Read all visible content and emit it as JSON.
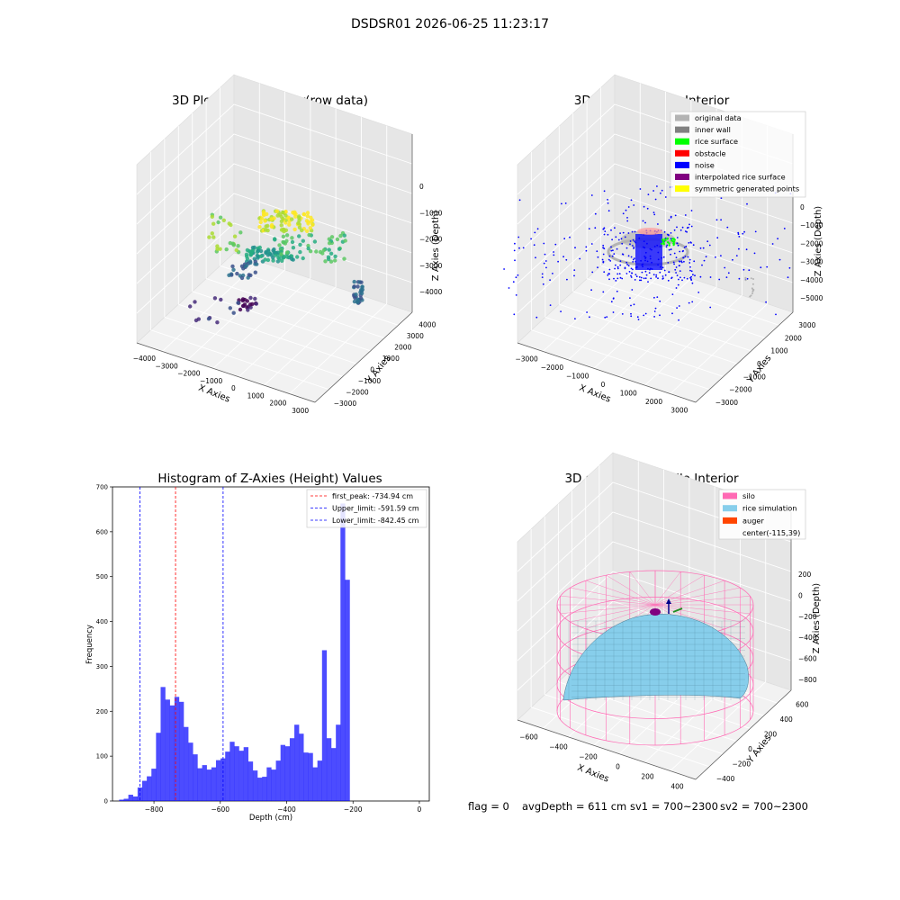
{
  "suptitle": "DSDSR01 2026-06-25 11:23:17",
  "status_line": {
    "flag": "flag = 0",
    "avg_depth": "avgDepth = 611 cm",
    "sv1": "sv1 = 700~2300",
    "sv2": "sv2 = 700~2300"
  },
  "chart_data": [
    {
      "type": "scatter",
      "projection": "3d",
      "title": "3D Plot of Silo Interior(row data)",
      "xlabel": "X Axies",
      "ylabel": "Y Axies",
      "zlabel": "Z Axies (Depth)",
      "x_ticks": [
        "−4000",
        "−3000",
        "−2000",
        "−1000",
        "0",
        "1000",
        "2000",
        "3000"
      ],
      "y_ticks": [
        "−3000",
        "−2000",
        "−1000",
        "0",
        "1000",
        "2000",
        "3000",
        "4000"
      ],
      "z_ticks": [
        "0",
        "−1000",
        "−2000",
        "−3000",
        "−4000"
      ],
      "xlim": [
        -4200,
        3300
      ],
      "ylim": [
        -3300,
        4200
      ],
      "zlim": [
        -4600,
        0
      ],
      "colormap": "viridis"
    },
    {
      "type": "scatter",
      "projection": "3d",
      "title": "3D classify of Silo Interior",
      "xlabel": "X Axies",
      "ylabel": "Y Axies",
      "zlabel": "Z Axies (Depth)",
      "x_ticks": [
        "−3000",
        "−2000",
        "−1000",
        "0",
        "1000",
        "2000",
        "3000"
      ],
      "y_ticks": [
        "−3000",
        "−2000",
        "−1000",
        "0",
        "1000",
        "2000",
        "3000"
      ],
      "z_ticks": [
        "0",
        "−1000",
        "−2000",
        "−3000",
        "−4000",
        "−5000"
      ],
      "xlim": [
        -3500,
        3200
      ],
      "ylim": [
        -3200,
        3300
      ],
      "zlim": [
        -5400,
        0
      ],
      "legend_position": "upper right",
      "legend": [
        {
          "name": "original data",
          "color": "#b3b3b3"
        },
        {
          "name": "inner wall",
          "color": "#808080"
        },
        {
          "name": "rice surface",
          "color": "#00ff00"
        },
        {
          "name": "obstacle",
          "color": "#ff0000"
        },
        {
          "name": "noise",
          "color": "#0000ff"
        },
        {
          "name": "interpolated rice surface",
          "color": "#800080"
        },
        {
          "name": "symmetric generated points",
          "color": "#ffff00"
        }
      ]
    },
    {
      "type": "bar",
      "title": "Histogram of Z-Axies (Height) Values",
      "xlabel": "Depth (cm)",
      "ylabel": "Frequency",
      "bar_color": "#0000ff",
      "xlim": [
        -925,
        30
      ],
      "ylim": [
        0,
        700
      ],
      "x_ticks": [
        -800,
        -600,
        -400,
        -200,
        0
      ],
      "x_tick_labels": [
        "−800",
        "−600",
        "−400",
        "−200",
        "0"
      ],
      "y_ticks": [
        0,
        100,
        200,
        300,
        400,
        500,
        600,
        700
      ],
      "bin_start": -905,
      "bin_width": 13.9,
      "values": [
        3,
        5,
        14,
        10,
        30,
        45,
        55,
        72,
        152,
        254,
        226,
        213,
        232,
        221,
        165,
        130,
        104,
        73,
        80,
        70,
        75,
        91,
        95,
        110,
        132,
        122,
        112,
        120,
        88,
        68,
        52,
        54,
        75,
        70,
        90,
        125,
        122,
        140,
        170,
        150,
        108,
        107,
        75,
        90,
        336,
        140,
        118,
        170,
        663,
        493
      ],
      "vlines": [
        {
          "label": "first_peak: -734.94 cm",
          "x": -734.94,
          "color": "#ff0000",
          "style": "dashed"
        },
        {
          "label": "Upper_limit: -591.59 cm",
          "x": -591.59,
          "color": "#0000ff",
          "style": "dashed"
        },
        {
          "label": "Lower_limit: -842.45 cm",
          "x": -842.45,
          "color": "#0000ff",
          "style": "dashed"
        }
      ],
      "legend_position": "upper right"
    },
    {
      "type": "surface",
      "projection": "3d",
      "title": "3D simulation of Silo Interior",
      "xlabel": "X Axies",
      "ylabel": "Y Axies",
      "zlabel": "Z Axies (Depth)",
      "x_ticks": [
        "−600",
        "−400",
        "−200",
        "0",
        "200",
        "400"
      ],
      "y_ticks": [
        "−400",
        "−200",
        "0",
        "200",
        "400",
        "600"
      ],
      "z_ticks": [
        "200",
        "0",
        "−200",
        "−400",
        "−600",
        "−800"
      ],
      "xlim": [
        -700,
        500
      ],
      "ylim": [
        -500,
        650
      ],
      "zlim": [
        -900,
        300
      ],
      "legend_position": "upper right",
      "legend": [
        {
          "name": "silo",
          "color": "#ff69b4"
        },
        {
          "name": "rice simulation",
          "color": "#87ceeb"
        },
        {
          "name": "auger",
          "color": "#ff4500"
        },
        {
          "name": "center(-115,39)",
          "color": ""
        }
      ]
    }
  ]
}
